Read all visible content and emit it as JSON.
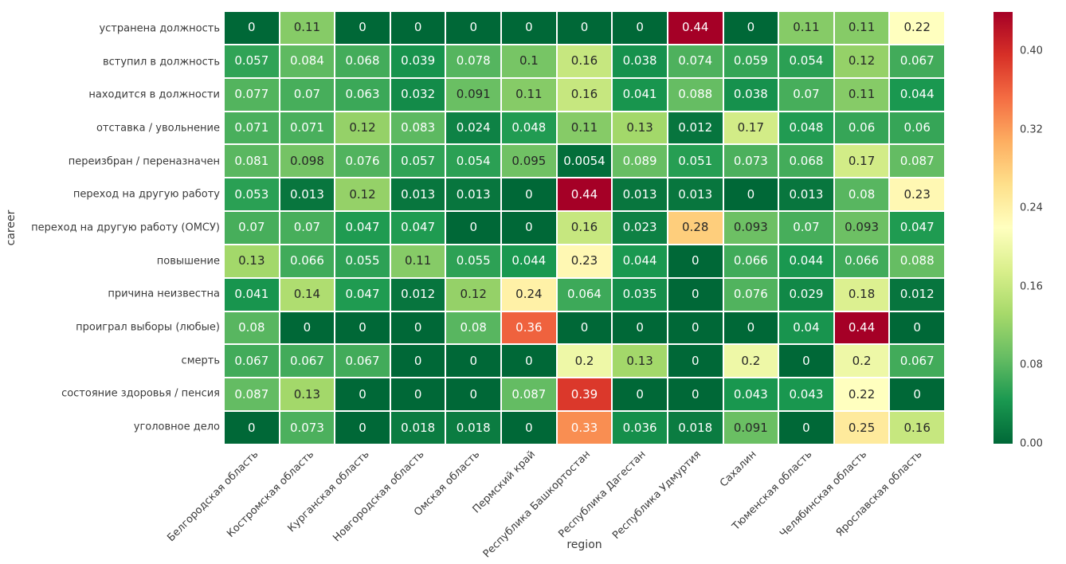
{
  "chart_data": {
    "type": "heatmap",
    "title": "",
    "xlabel": "region",
    "ylabel": "career",
    "x_categories": [
      "Белгородская область",
      "Костромская область",
      "Курганская область",
      "Новгородская область",
      "Омская область",
      "Пермский край",
      "Республика Башкортостан",
      "Республика Дагестан",
      "Республика Удмуртия",
      "Сахалин",
      "Тюменская область",
      "Челябинская область",
      "Ярославская область"
    ],
    "y_categories": [
      "устранена должность",
      "вступил в должность",
      "находится в должности",
      "отставка / увольнение",
      "переизбран / переназначен",
      "переход на другую работу",
      "переход на другую работу (ОМСУ)",
      "повышение",
      "причина неизвестна",
      "проиграл выборы (любые)",
      "смерть",
      "состояние здоровья / пенсия",
      "уголовное дело"
    ],
    "values": [
      [
        "0",
        "0.11",
        "0",
        "0",
        "0",
        "0",
        "0",
        "0",
        "0.44",
        "0",
        "0.11",
        "0.11",
        "0.22"
      ],
      [
        "0.057",
        "0.084",
        "0.068",
        "0.039",
        "0.078",
        "0.1",
        "0.16",
        "0.038",
        "0.074",
        "0.059",
        "0.054",
        "0.12",
        "0.067"
      ],
      [
        "0.077",
        "0.07",
        "0.063",
        "0.032",
        "0.091",
        "0.11",
        "0.16",
        "0.041",
        "0.088",
        "0.038",
        "0.07",
        "0.11",
        "0.044"
      ],
      [
        "0.071",
        "0.071",
        "0.12",
        "0.083",
        "0.024",
        "0.048",
        "0.11",
        "0.13",
        "0.012",
        "0.17",
        "0.048",
        "0.06",
        "0.06"
      ],
      [
        "0.081",
        "0.098",
        "0.076",
        "0.057",
        "0.054",
        "0.095",
        "0.0054",
        "0.089",
        "0.051",
        "0.073",
        "0.068",
        "0.17",
        "0.087"
      ],
      [
        "0.053",
        "0.013",
        "0.12",
        "0.013",
        "0.013",
        "0",
        "0.44",
        "0.013",
        "0.013",
        "0",
        "0.013",
        "0.08",
        "0.23"
      ],
      [
        "0.07",
        "0.07",
        "0.047",
        "0.047",
        "0",
        "0",
        "0.16",
        "0.023",
        "0.28",
        "0.093",
        "0.07",
        "0.093",
        "0.047"
      ],
      [
        "0.13",
        "0.066",
        "0.055",
        "0.11",
        "0.055",
        "0.044",
        "0.23",
        "0.044",
        "0",
        "0.066",
        "0.044",
        "0.066",
        "0.088"
      ],
      [
        "0.041",
        "0.14",
        "0.047",
        "0.012",
        "0.12",
        "0.24",
        "0.064",
        "0.035",
        "0",
        "0.076",
        "0.029",
        "0.18",
        "0.012"
      ],
      [
        "0.08",
        "0",
        "0",
        "0",
        "0.08",
        "0.36",
        "0",
        "0",
        "0",
        "0",
        "0.04",
        "0.44",
        "0"
      ],
      [
        "0.067",
        "0.067",
        "0.067",
        "0",
        "0",
        "0",
        "0.2",
        "0.13",
        "0",
        "0.2",
        "0",
        "0.2",
        "0.067"
      ],
      [
        "0.087",
        "0.13",
        "0",
        "0",
        "0",
        "0.087",
        "0.39",
        "0",
        "0",
        "0.043",
        "0.043",
        "0.22",
        "0"
      ],
      [
        "0",
        "0.073",
        "0",
        "0.018",
        "0.018",
        "0",
        "0.33",
        "0.036",
        "0.018",
        "0.091",
        "0",
        "0.25",
        "0.16"
      ]
    ],
    "vmin": 0,
    "vmax": 0.44,
    "colormap": {
      "name": "RdYlGn_r",
      "stops": [
        "#006837",
        "#1a9850",
        "#66bd63",
        "#a6d96a",
        "#d9ef8b",
        "#ffffbf",
        "#fee08b",
        "#fdae61",
        "#f46d43",
        "#d73027",
        "#a50026"
      ]
    },
    "colorbar_ticks": [
      "0.00",
      "0.08",
      "0.16",
      "0.24",
      "0.32",
      "0.40"
    ],
    "grid_line_color": "#ffffff",
    "annotation_colors": {
      "on_dark": "#ffffff",
      "on_light": "#262626"
    },
    "tick_label_color": "#3b3b3b",
    "legend_position": "right-colorbar",
    "grid": false
  }
}
